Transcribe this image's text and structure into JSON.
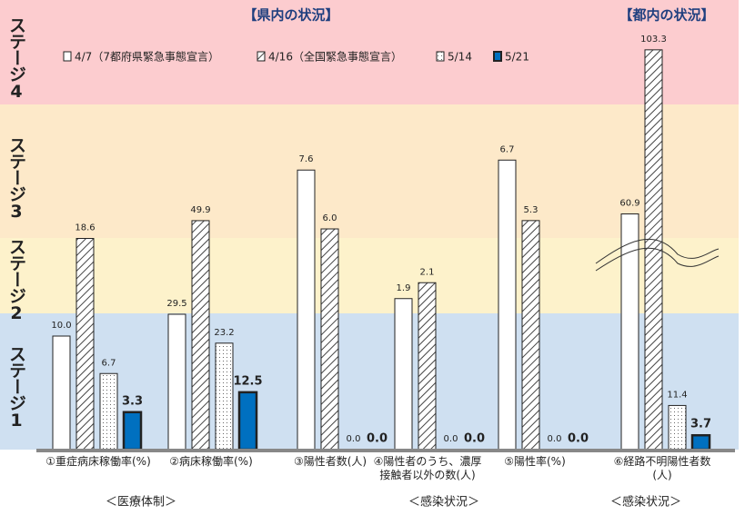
{
  "chart_data": {
    "type": "bar",
    "title_left": "【県内の状況】",
    "title_right": "【都内の状況】",
    "stages": [
      "ステージ4",
      "ステージ3",
      "ステージ2",
      "ステージ1"
    ],
    "categories": [
      "①重症病床稼働率(%)",
      "②病床稼働率(%)",
      "③陽性者数(人)",
      "④陽性者のうち、濃厚\n接触者以外の数(人)",
      "⑤陽性率(%)",
      "⑥経路不明陽性者数\n(人)"
    ],
    "category_ylims": [
      [
        0,
        39.2
      ],
      [
        0,
        97
      ],
      [
        0,
        12.1
      ],
      [
        0,
        5.6
      ],
      [
        0,
        10.3
      ],
      [
        0,
        115
      ]
    ],
    "sections": [
      "＜医療体制＞",
      "＜感染状況＞",
      "＜感染状況＞"
    ],
    "series": [
      {
        "name": "4/7（7都府県緊急事態宣言）",
        "color": "#ffffff",
        "pattern": "none",
        "values": [
          10.0,
          29.5,
          7.6,
          1.9,
          6.7,
          60.9
        ],
        "value_labels": [
          "10.0",
          "29.5",
          "7.6",
          "1.9",
          "6.7",
          "60.9"
        ]
      },
      {
        "name": "4/16（全国緊急事態宣言）",
        "color": "#ffffff",
        "pattern": "hatch",
        "values": [
          18.6,
          49.9,
          6.0,
          2.1,
          5.3,
          103.3
        ],
        "value_labels": [
          "18.6",
          "49.9",
          "6.0",
          "2.1",
          "5.3",
          "103.3"
        ]
      },
      {
        "name": "5/14",
        "color": "#ffffff",
        "pattern": "dots",
        "values": [
          6.7,
          23.2,
          0.0,
          0.0,
          0.0,
          11.4
        ],
        "value_labels": [
          "6.7",
          "23.2",
          "0.0",
          "0.0",
          "0.0",
          "11.4"
        ]
      },
      {
        "name": "5/21",
        "color": "#0070c0",
        "pattern": "solid",
        "values": [
          3.3,
          12.5,
          0.0,
          0.0,
          0.0,
          3.7
        ],
        "value_labels": [
          "3.3",
          "12.5",
          "0.0",
          "0.0",
          "0.0",
          "3.7"
        ]
      }
    ]
  }
}
